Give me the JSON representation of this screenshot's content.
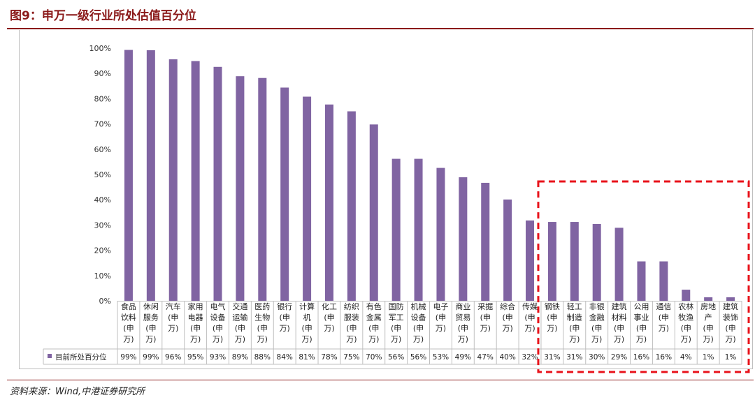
{
  "title": "图9：申万一级行业所处估值百分位",
  "source": "资料来源：Wind,中港证券研究所",
  "chart_data": {
    "type": "bar",
    "legend": "目前所处百分位",
    "categories": [
      [
        "食品",
        "饮料",
        "(申",
        "万)"
      ],
      [
        "休闲",
        "服务",
        "(申",
        "万)"
      ],
      [
        "汽车",
        "(申",
        "万)"
      ],
      [
        "家用",
        "电器",
        "(申",
        "万)"
      ],
      [
        "电气",
        "设备",
        "(申",
        "万)"
      ],
      [
        "交通",
        "运输",
        "(申",
        "万)"
      ],
      [
        "医药",
        "生物",
        "(申",
        "万)"
      ],
      [
        "银行",
        "(申",
        "万)"
      ],
      [
        "计算",
        "机",
        "(申",
        "万)"
      ],
      [
        "化工",
        "(申",
        "万)"
      ],
      [
        "纺织",
        "服装",
        "(申",
        "万)"
      ],
      [
        "有色",
        "金属",
        "(申",
        "万)"
      ],
      [
        "国防",
        "军工",
        "(申",
        "万)"
      ],
      [
        "机械",
        "设备",
        "(申",
        "万)"
      ],
      [
        "电子",
        "(申",
        "万)"
      ],
      [
        "商业",
        "贸易",
        "(申",
        "万)"
      ],
      [
        "采掘",
        "(申",
        "万)"
      ],
      [
        "综合",
        "(申",
        "万)"
      ],
      [
        "传媒",
        "(申",
        "万)"
      ],
      [
        "钢铁",
        "(申",
        "万)"
      ],
      [
        "轻工",
        "制造",
        "(申",
        "万)"
      ],
      [
        "非银",
        "金融",
        "(申",
        "万)"
      ],
      [
        "建筑",
        "材料",
        "(申",
        "万)"
      ],
      [
        "公用",
        "事业",
        "(申",
        "万)"
      ],
      [
        "通信",
        "(申",
        "万)"
      ],
      [
        "农林",
        "牧渔",
        "(申",
        "万)"
      ],
      [
        "房地",
        "产",
        "(申",
        "万)"
      ],
      [
        "建筑",
        "装饰",
        "(申",
        "万)"
      ]
    ],
    "values": [
      99.3,
      99.2,
      95.6,
      94.9,
      92.6,
      88.9,
      88.2,
      84.4,
      80.8,
      77.7,
      75.0,
      69.8,
      56.2,
      56.2,
      52.6,
      48.9,
      46.7,
      40.1,
      31.8,
      31.2,
      31.2,
      30.4,
      28.9,
      15.6,
      15.6,
      4.4,
      1.4,
      1.4
    ],
    "value_labels": [
      "99%",
      "99%",
      "96%",
      "95%",
      "93%",
      "89%",
      "88%",
      "84%",
      "81%",
      "78%",
      "75%",
      "70%",
      "56%",
      "56%",
      "53%",
      "49%",
      "47%",
      "40%",
      "32%",
      "31%",
      "31%",
      "30%",
      "29%",
      "16%",
      "16%",
      "4%",
      "1%",
      "1%"
    ],
    "yticks": [
      "0%",
      "10%",
      "20%",
      "30%",
      "40%",
      "50%",
      "60%",
      "70%",
      "80%",
      "90%",
      "100%"
    ],
    "ylim": [
      0,
      100
    ],
    "grid": false,
    "legend_position": "bottom-left",
    "bar_color": "#8064a2",
    "highlight_color": "#e8121a",
    "highlight_range": [
      19,
      27
    ]
  }
}
